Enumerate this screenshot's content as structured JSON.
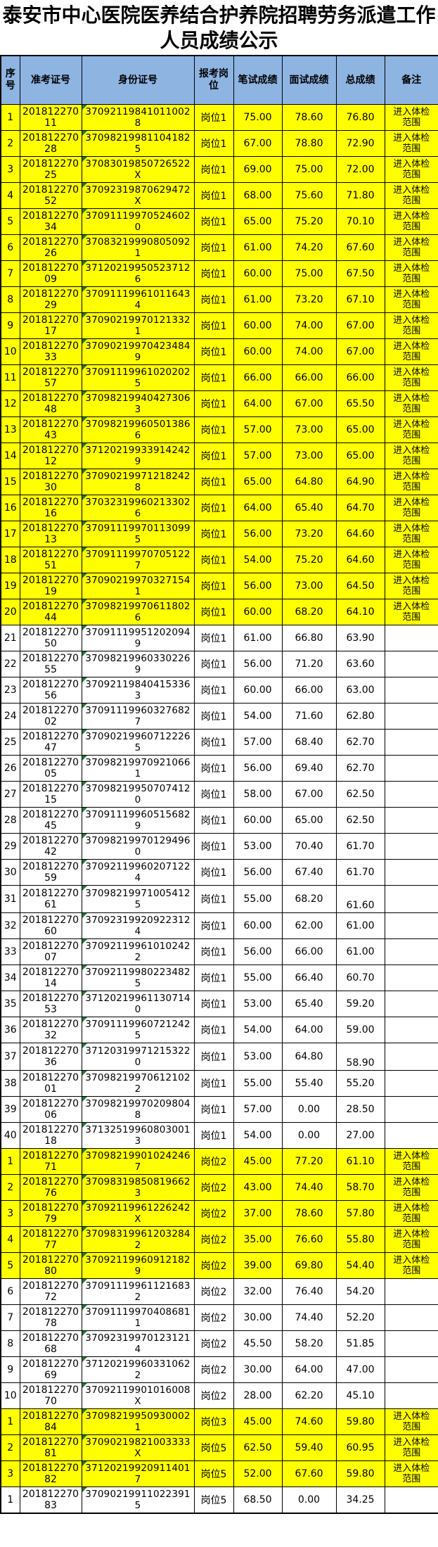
{
  "title": "泰安市中心医院医养结合护养院招聘劳务派遣工作人员成绩公示",
  "columns": [
    "序号",
    "准考证号",
    "身份证号",
    "报考岗位",
    "笔试成绩",
    "面试成绩",
    "总成绩",
    "备注"
  ],
  "remark_pass_label": "进入体检范围",
  "colors": {
    "header_bg": "#8EB4E2",
    "highlight_bg": "#FFFF00",
    "row_bg": "#FFFFFF",
    "border": "#000000",
    "text": "#000000",
    "indicator_triangle": "#1F7A33"
  },
  "rows": [
    {
      "no": "1",
      "ticket": "20181227011",
      "id": "370921198410110028",
      "post": "岗位1",
      "written": "75.00",
      "interview": "78.60",
      "total": "76.80",
      "remark": "进入体检范围",
      "highlight": true
    },
    {
      "no": "2",
      "ticket": "20181227028",
      "id": "370982199811041825",
      "post": "岗位1",
      "written": "67.00",
      "interview": "78.80",
      "total": "72.90",
      "remark": "进入体检范围",
      "highlight": true
    },
    {
      "no": "3",
      "ticket": "20181227025",
      "id": "37083019850726522X",
      "post": "岗位1",
      "written": "69.00",
      "interview": "75.00",
      "total": "72.00",
      "remark": "进入体检范围",
      "highlight": true
    },
    {
      "no": "4",
      "ticket": "20181227052",
      "id": "37092319870629472X",
      "post": "岗位1",
      "written": "68.00",
      "interview": "75.60",
      "total": "71.80",
      "remark": "进入体检范围",
      "highlight": true
    },
    {
      "no": "5",
      "ticket": "20181227034",
      "id": "370911199705246020",
      "post": "岗位1",
      "written": "65.00",
      "interview": "75.20",
      "total": "70.10",
      "remark": "进入体检范围",
      "highlight": true
    },
    {
      "no": "6",
      "ticket": "20181227026",
      "id": "370832199908050921",
      "post": "岗位1",
      "written": "61.00",
      "interview": "74.20",
      "total": "67.60",
      "remark": "进入体检范围",
      "highlight": true
    },
    {
      "no": "7",
      "ticket": "20181227009",
      "id": "371202199505237126",
      "post": "岗位1",
      "written": "60.00",
      "interview": "75.00",
      "total": "67.50",
      "remark": "进入体检范围",
      "highlight": true
    },
    {
      "no": "8",
      "ticket": "20181227029",
      "id": "370911199610116434",
      "post": "岗位1",
      "written": "61.00",
      "interview": "73.20",
      "total": "67.10",
      "remark": "进入体检范围",
      "highlight": true
    },
    {
      "no": "9",
      "ticket": "20181227017",
      "id": "370902199701213321",
      "post": "岗位1",
      "written": "60.00",
      "interview": "74.00",
      "total": "67.00",
      "remark": "进入体检范围",
      "highlight": true
    },
    {
      "no": "10",
      "ticket": "20181227033",
      "id": "370902199704234849",
      "post": "岗位1",
      "written": "60.00",
      "interview": "74.00",
      "total": "67.00",
      "remark": "进入体检范围",
      "highlight": true
    },
    {
      "no": "11",
      "ticket": "20181227057",
      "id": "370911199610202025",
      "post": "岗位1",
      "written": "66.00",
      "interview": "66.00",
      "total": "66.00",
      "remark": "进入体检范围",
      "highlight": true
    },
    {
      "no": "12",
      "ticket": "20181227048",
      "id": "370982199404273063",
      "post": "岗位1",
      "written": "64.00",
      "interview": "67.00",
      "total": "65.50",
      "remark": "进入体检范围",
      "highlight": true
    },
    {
      "no": "13",
      "ticket": "20181227043",
      "id": "370982199605013866",
      "post": "岗位1",
      "written": "57.00",
      "interview": "73.00",
      "total": "65.00",
      "remark": "进入体检范围",
      "highlight": true
    },
    {
      "no": "14",
      "ticket": "20181227012",
      "id": "371202199339142429",
      "post": "岗位1",
      "written": "57.00",
      "interview": "73.00",
      "total": "65.00",
      "remark": "进入体检范围",
      "highlight": true
    },
    {
      "no": "15",
      "ticket": "20181227030",
      "id": "370902199712182428",
      "post": "岗位1",
      "written": "65.00",
      "interview": "64.80",
      "total": "64.90",
      "remark": "进入体检范围",
      "highlight": true
    },
    {
      "no": "16",
      "ticket": "20181227016",
      "id": "370323199602133026",
      "post": "岗位1",
      "written": "64.00",
      "interview": "65.40",
      "total": "64.70",
      "remark": "进入体检范围",
      "highlight": true
    },
    {
      "no": "17",
      "ticket": "20181227013",
      "id": "370911199701130995",
      "post": "岗位1",
      "written": "56.00",
      "interview": "73.20",
      "total": "64.60",
      "remark": "进入体检范围",
      "highlight": true
    },
    {
      "no": "18",
      "ticket": "20181227051",
      "id": "370911199707051227",
      "post": "岗位1",
      "written": "54.00",
      "interview": "75.20",
      "total": "64.60",
      "remark": "进入体检范围",
      "highlight": true
    },
    {
      "no": "19",
      "ticket": "20181227019",
      "id": "370902199703271541",
      "post": "岗位1",
      "written": "56.00",
      "interview": "73.00",
      "total": "64.50",
      "remark": "进入体检范围",
      "highlight": true
    },
    {
      "no": "20",
      "ticket": "20181227044",
      "id": "370982199706118026",
      "post": "岗位1",
      "written": "60.00",
      "interview": "68.20",
      "total": "64.10",
      "remark": "进入体检范围",
      "highlight": true
    },
    {
      "no": "21",
      "ticket": "20181227050",
      "id": "370911199512020949",
      "post": "岗位1",
      "written": "61.00",
      "interview": "66.80",
      "total": "63.90",
      "remark": "",
      "highlight": false
    },
    {
      "no": "22",
      "ticket": "20181227055",
      "id": "370982199603302269",
      "post": "岗位1",
      "written": "56.00",
      "interview": "71.20",
      "total": "63.60",
      "remark": "",
      "highlight": false
    },
    {
      "no": "23",
      "ticket": "20181227056",
      "id": "370921198404153363",
      "post": "岗位1",
      "written": "60.00",
      "interview": "66.00",
      "total": "63.00",
      "remark": "",
      "highlight": false
    },
    {
      "no": "24",
      "ticket": "20181227002",
      "id": "370911199603276827",
      "post": "岗位1",
      "written": "54.00",
      "interview": "71.60",
      "total": "62.80",
      "remark": "",
      "highlight": false
    },
    {
      "no": "25",
      "ticket": "20181227047",
      "id": "370902199607122265",
      "post": "岗位1",
      "written": "57.00",
      "interview": "68.40",
      "total": "62.70",
      "remark": "",
      "highlight": false
    },
    {
      "no": "26",
      "ticket": "20181227005",
      "id": "370982199709210661",
      "post": "岗位1",
      "written": "56.00",
      "interview": "69.40",
      "total": "62.70",
      "remark": "",
      "highlight": false
    },
    {
      "no": "27",
      "ticket": "20181227015",
      "id": "370982199507074120",
      "post": "岗位1",
      "written": "58.00",
      "interview": "67.00",
      "total": "62.50",
      "remark": "",
      "highlight": false
    },
    {
      "no": "28",
      "ticket": "20181227045",
      "id": "370911199605156829",
      "post": "岗位1",
      "written": "60.00",
      "interview": "65.00",
      "total": "62.50",
      "remark": "",
      "highlight": false
    },
    {
      "no": "29",
      "ticket": "20181227042",
      "id": "370982199701294960",
      "post": "岗位1",
      "written": "53.00",
      "interview": "70.40",
      "total": "61.70",
      "remark": "",
      "highlight": false
    },
    {
      "no": "30",
      "ticket": "20181227059",
      "id": "370921199602071224",
      "post": "岗位1",
      "written": "56.00",
      "interview": "67.40",
      "total": "61.70",
      "remark": "",
      "highlight": false
    },
    {
      "no": "31",
      "ticket": "20181227061",
      "id": "370982199710054125",
      "post": "岗位1",
      "written": "55.00",
      "interview": "68.20",
      "total": "61.60",
      "remark": "",
      "highlight": false,
      "total_low": true
    },
    {
      "no": "32",
      "ticket": "20181227060",
      "id": "370923199209223124",
      "post": "岗位1",
      "written": "60.00",
      "interview": "62.00",
      "total": "61.00",
      "remark": "",
      "highlight": false
    },
    {
      "no": "33",
      "ticket": "20181227007",
      "id": "370921199610102422",
      "post": "岗位1",
      "written": "56.00",
      "interview": "66.00",
      "total": "61.00",
      "remark": "",
      "highlight": false
    },
    {
      "no": "34",
      "ticket": "20181227014",
      "id": "370921199802234825",
      "post": "岗位1",
      "written": "55.00",
      "interview": "66.40",
      "total": "60.70",
      "remark": "",
      "highlight": false
    },
    {
      "no": "35",
      "ticket": "20181227053",
      "id": "371202199611307140",
      "post": "岗位1",
      "written": "53.00",
      "interview": "65.40",
      "total": "59.20",
      "remark": "",
      "highlight": false
    },
    {
      "no": "36",
      "ticket": "20181227032",
      "id": "370911199607212425",
      "post": "岗位1",
      "written": "54.00",
      "interview": "64.00",
      "total": "59.00",
      "remark": "",
      "highlight": false
    },
    {
      "no": "37",
      "ticket": "20181227036",
      "id": "371203199712153220",
      "post": "岗位1",
      "written": "53.00",
      "interview": "64.80",
      "total": "58.90",
      "remark": "",
      "highlight": false,
      "total_low": true
    },
    {
      "no": "38",
      "ticket": "20181227001",
      "id": "370982199706121022",
      "post": "岗位1",
      "written": "55.00",
      "interview": "55.40",
      "total": "55.20",
      "remark": "",
      "highlight": false
    },
    {
      "no": "39",
      "ticket": "20181227006",
      "id": "370982199702098048",
      "post": "岗位1",
      "written": "57.00",
      "interview": "0.00",
      "total": "28.50",
      "remark": "",
      "highlight": false
    },
    {
      "no": "40",
      "ticket": "20181227018",
      "id": "371325199608030013",
      "post": "岗位1",
      "written": "54.00",
      "interview": "0.00",
      "total": "27.00",
      "remark": "",
      "highlight": false
    },
    {
      "no": "1",
      "ticket": "20181227071",
      "id": "370982199010242467",
      "post": "岗位2",
      "written": "45.00",
      "interview": "77.20",
      "total": "61.10",
      "remark": "进入体检范围",
      "highlight": true
    },
    {
      "no": "2",
      "ticket": "20181227076",
      "id": "370983198508196623",
      "post": "岗位2",
      "written": "43.00",
      "interview": "74.40",
      "total": "58.70",
      "remark": "进入体检范围",
      "highlight": true
    },
    {
      "no": "3",
      "ticket": "20181227079",
      "id": "37092119961226242X",
      "post": "岗位2",
      "written": "37.00",
      "interview": "78.60",
      "total": "57.80",
      "remark": "进入体检范围",
      "highlight": true
    },
    {
      "no": "4",
      "ticket": "20181227077",
      "id": "370983199612032842",
      "post": "岗位2",
      "written": "35.00",
      "interview": "76.60",
      "total": "55.80",
      "remark": "进入体检范围",
      "highlight": true
    },
    {
      "no": "5",
      "ticket": "20181227080",
      "id": "370921199609121829",
      "post": "岗位2",
      "written": "39.00",
      "interview": "69.80",
      "total": "54.40",
      "remark": "进入体检范围",
      "highlight": true
    },
    {
      "no": "6",
      "ticket": "20181227072",
      "id": "370911199611216832",
      "post": "岗位2",
      "written": "32.00",
      "interview": "76.40",
      "total": "54.20",
      "remark": "",
      "highlight": false
    },
    {
      "no": "7",
      "ticket": "20181227078",
      "id": "370911199704086811",
      "post": "岗位2",
      "written": "30.00",
      "interview": "74.40",
      "total": "52.20",
      "remark": "",
      "highlight": false
    },
    {
      "no": "8",
      "ticket": "20181227068",
      "id": "370923199701231214",
      "post": "岗位2",
      "written": "45.50",
      "interview": "58.20",
      "total": "51.85",
      "remark": "",
      "highlight": false
    },
    {
      "no": "9",
      "ticket": "20181227069",
      "id": "371202199603310622",
      "post": "岗位2",
      "written": "30.00",
      "interview": "64.00",
      "total": "47.00",
      "remark": "",
      "highlight": false
    },
    {
      "no": "10",
      "ticket": "20181227070",
      "id": "37092119901016008X",
      "post": "岗位2",
      "written": "28.00",
      "interview": "62.20",
      "total": "45.10",
      "remark": "",
      "highlight": false
    },
    {
      "no": "1",
      "ticket": "20181227084",
      "id": "370982199509300021",
      "post": "岗位3",
      "written": "45.00",
      "interview": "74.60",
      "total": "59.80",
      "remark": "进入体检范围",
      "highlight": true
    },
    {
      "no": "2",
      "ticket": "20181227081",
      "id": "37090219821003333X",
      "post": "岗位5",
      "written": "62.50",
      "interview": "59.40",
      "total": "60.95",
      "remark": "进入体检范围",
      "highlight": true
    },
    {
      "no": "3",
      "ticket": "20181227082",
      "id": "371202199209114017",
      "post": "岗位5",
      "written": "52.00",
      "interview": "67.60",
      "total": "59.80",
      "remark": "进入体检范围",
      "highlight": true
    },
    {
      "no": "1",
      "ticket": "20181227083",
      "id": "370902199110223915",
      "post": "岗位5",
      "written": "68.50",
      "interview": "0.00",
      "total": "34.25",
      "remark": "",
      "highlight": false
    }
  ]
}
